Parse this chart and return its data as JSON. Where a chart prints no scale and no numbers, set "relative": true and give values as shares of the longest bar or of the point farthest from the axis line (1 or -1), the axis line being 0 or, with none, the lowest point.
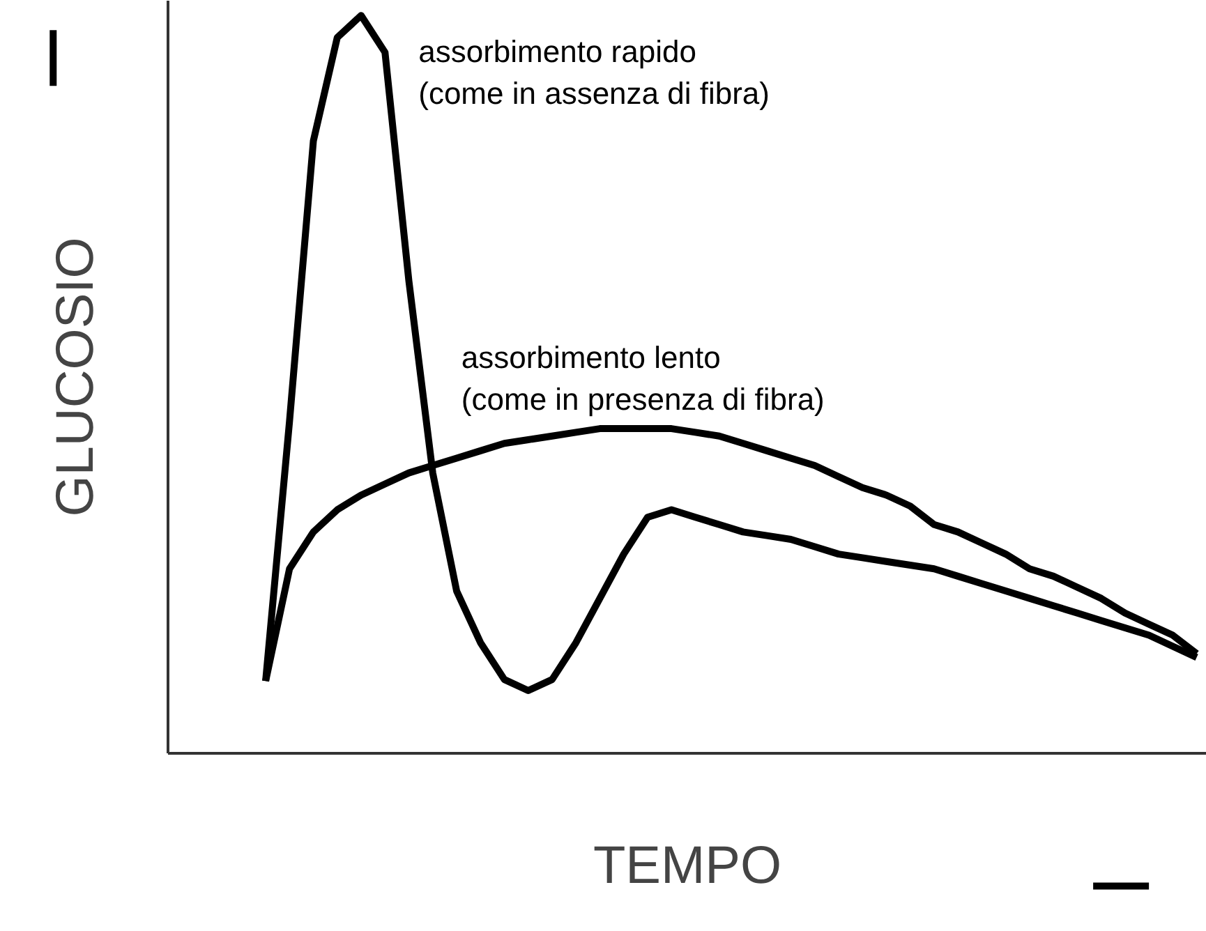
{
  "chart_data": {
    "type": "line",
    "relative": true,
    "xlabel": "TEMPO",
    "ylabel": "GLUCOSIO",
    "categories": [
      null,
      null,
      null,
      null,
      null,
      null,
      null,
      null,
      null,
      null,
      null,
      null,
      null,
      null,
      null,
      null,
      null,
      null,
      null,
      null,
      null,
      null,
      null,
      null,
      null,
      null,
      null,
      null,
      null,
      null,
      null,
      null,
      null,
      null,
      null,
      null,
      null,
      null,
      null,
      null
    ],
    "series": [
      {
        "name": "assorbimento rapido\n(come in assenza di fibra)",
        "color": "#000000",
        "values": [
          0.098,
          0.45,
          0.83,
          0.97,
          1.0,
          0.95,
          0.64,
          0.38,
          0.22,
          0.15,
          0.1,
          0.085,
          0.1,
          0.15,
          0.21,
          0.27,
          0.32,
          0.33,
          0.32,
          0.31,
          0.3,
          0.295,
          0.29,
          0.28,
          0.27,
          0.265,
          0.26,
          0.255,
          0.25,
          0.24,
          0.23,
          0.22,
          0.21,
          0.2,
          0.19,
          0.18,
          0.17,
          0.16,
          0.145,
          0.13
        ]
      },
      {
        "name": "assorbimento lento\n(come in presenza di fibra)",
        "color": "#000000",
        "values": [
          0.098,
          0.25,
          0.3,
          0.33,
          0.35,
          0.365,
          0.38,
          0.39,
          0.4,
          0.41,
          0.42,
          0.425,
          0.43,
          0.435,
          0.44,
          0.44,
          0.44,
          0.44,
          0.435,
          0.43,
          0.42,
          0.41,
          0.4,
          0.39,
          0.375,
          0.36,
          0.35,
          0.335,
          0.31,
          0.3,
          0.285,
          0.27,
          0.25,
          0.24,
          0.225,
          0.21,
          0.19,
          0.175,
          0.16,
          0.135
        ]
      }
    ],
    "line_style": "solid",
    "marker": "none"
  }
}
